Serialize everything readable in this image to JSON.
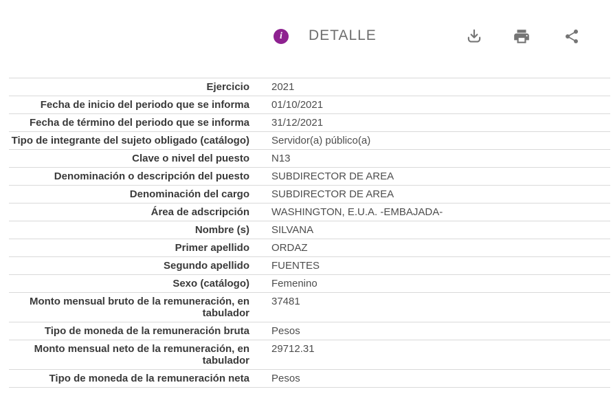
{
  "header": {
    "title": "DETALLE",
    "icons": [
      "info-icon",
      "download-icon",
      "print-icon",
      "share-icon"
    ],
    "colors": {
      "accent": "#8e2190",
      "title_gray": "#6e6e6e",
      "icon_gray": "#757575",
      "separator": "#d9d9d9",
      "label_text": "#3a3a3a",
      "value_text": "#4d4d4d"
    }
  },
  "detail_table": {
    "rows": [
      {
        "label": "Ejercicio",
        "value": "2021"
      },
      {
        "label": "Fecha de inicio del periodo que se informa",
        "value": "01/10/2021"
      },
      {
        "label": "Fecha de término del periodo que se informa",
        "value": "31/12/2021"
      },
      {
        "label": "Tipo de integrante del sujeto obligado (catálogo)",
        "value": "Servidor(a) público(a)"
      },
      {
        "label": "Clave o nivel del puesto",
        "value": "N13"
      },
      {
        "label": "Denominación o descripción del puesto",
        "value": "SUBDIRECTOR DE AREA"
      },
      {
        "label": "Denominación del cargo",
        "value": "SUBDIRECTOR DE AREA"
      },
      {
        "label": "Área de adscripción",
        "value": "WASHINGTON, E.U.A. -EMBAJADA-"
      },
      {
        "label": "Nombre (s)",
        "value": "SILVANA"
      },
      {
        "label": "Primer apellido",
        "value": "ORDAZ"
      },
      {
        "label": "Segundo apellido",
        "value": "FUENTES"
      },
      {
        "label": "Sexo (catálogo)",
        "value": "Femenino"
      },
      {
        "label": "Monto mensual bruto de la remuneración, en tabulador",
        "value": "37481"
      },
      {
        "label": "Tipo de moneda de la remuneración bruta",
        "value": "Pesos"
      },
      {
        "label": "Monto mensual neto de la remuneración, en tabulador",
        "value": "29712.31"
      },
      {
        "label": "Tipo de moneda de la remuneración neta",
        "value": "Pesos"
      }
    ]
  }
}
